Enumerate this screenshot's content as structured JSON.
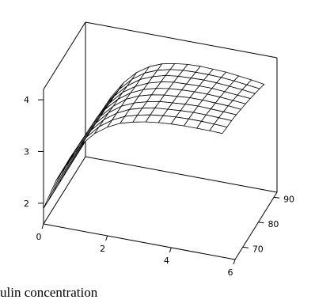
{
  "chart_data": {
    "type": "surface",
    "title": "",
    "caption": "ulin concentration",
    "x_axis": {
      "label": "",
      "range": [
        0,
        6
      ],
      "ticks": [
        "0",
        "2",
        "4",
        "6"
      ]
    },
    "y_axis": {
      "label": "",
      "range": [
        65,
        92
      ],
      "ticks": [
        "70",
        "80",
        "90"
      ]
    },
    "z_axis": {
      "label": "",
      "range": [
        1.6,
        4.2
      ],
      "ticks": [
        "2",
        "3",
        "4"
      ]
    },
    "grid_x": [
      0,
      0.4,
      0.8,
      1.2,
      1.6,
      2.0,
      2.4,
      2.8,
      3.2,
      3.6,
      4.0,
      4.4,
      4.8,
      5.2,
      5.6
    ],
    "grid_y": [
      65,
      68,
      71,
      74,
      77,
      80,
      83,
      86,
      89,
      92
    ],
    "surface_z": [
      [
        1.9,
        2.49,
        2.94,
        3.28,
        3.53,
        3.7,
        3.82,
        3.89,
        3.94,
        3.97,
        3.99,
        4.0,
        4.0,
        4.0,
        3.99
      ],
      [
        1.9,
        2.48,
        2.93,
        3.27,
        3.52,
        3.69,
        3.81,
        3.88,
        3.93,
        3.96,
        3.98,
        3.99,
        3.99,
        3.98,
        3.97
      ],
      [
        1.9,
        2.47,
        2.92,
        3.26,
        3.51,
        3.68,
        3.8,
        3.87,
        3.92,
        3.94,
        3.96,
        3.97,
        3.97,
        3.96,
        3.95
      ],
      [
        1.9,
        2.46,
        2.91,
        3.25,
        3.5,
        3.67,
        3.78,
        3.85,
        3.9,
        3.92,
        3.94,
        3.95,
        3.94,
        3.93,
        3.92
      ],
      [
        1.9,
        2.45,
        2.9,
        3.24,
        3.48,
        3.66,
        3.77,
        3.84,
        3.88,
        3.9,
        3.92,
        3.92,
        3.91,
        3.9,
        3.88
      ],
      [
        1.9,
        2.44,
        2.89,
        3.23,
        3.47,
        3.64,
        3.75,
        3.82,
        3.86,
        3.88,
        3.89,
        3.89,
        3.88,
        3.86,
        3.84
      ],
      [
        1.9,
        2.43,
        2.88,
        3.21,
        3.46,
        3.62,
        3.73,
        3.8,
        3.84,
        3.85,
        3.86,
        3.86,
        3.84,
        3.82,
        3.8
      ],
      [
        1.9,
        2.42,
        2.86,
        3.2,
        3.44,
        3.61,
        3.71,
        3.78,
        3.81,
        3.82,
        3.83,
        3.82,
        3.8,
        3.78,
        3.75
      ],
      [
        1.9,
        2.41,
        2.85,
        3.18,
        3.42,
        3.59,
        3.69,
        3.75,
        3.78,
        3.79,
        3.79,
        3.78,
        3.76,
        3.73,
        3.7
      ],
      [
        1.9,
        2.4,
        2.84,
        3.17,
        3.41,
        3.57,
        3.67,
        3.72,
        3.75,
        3.76,
        3.75,
        3.74,
        3.71,
        3.68,
        3.64
      ]
    ],
    "colors": {
      "mesh_fill": "#ffffff",
      "mesh_line": "#000000",
      "axis_line": "#000000"
    },
    "grid": false,
    "legend": "none"
  }
}
